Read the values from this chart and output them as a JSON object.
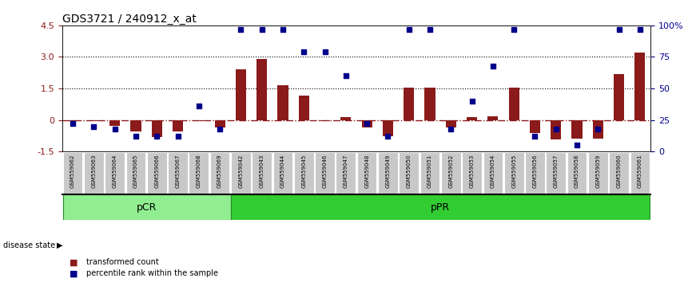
{
  "title": "GDS3721 / 240912_x_at",
  "samples": [
    "GSM559062",
    "GSM559063",
    "GSM559064",
    "GSM559065",
    "GSM559066",
    "GSM559067",
    "GSM559068",
    "GSM559069",
    "GSM559042",
    "GSM559043",
    "GSM559044",
    "GSM559045",
    "GSM559046",
    "GSM559047",
    "GSM559048",
    "GSM559049",
    "GSM559050",
    "GSM559051",
    "GSM559052",
    "GSM559053",
    "GSM559054",
    "GSM559055",
    "GSM559056",
    "GSM559057",
    "GSM559058",
    "GSM559059",
    "GSM559060",
    "GSM559061"
  ],
  "transformed_count": [
    -0.05,
    -0.05,
    -0.28,
    -0.55,
    -0.82,
    -0.55,
    -0.05,
    -0.35,
    2.42,
    2.92,
    1.65,
    1.15,
    -0.05,
    0.12,
    -0.35,
    -0.78,
    1.55,
    1.55,
    -0.35,
    0.12,
    0.18,
    1.55,
    -0.62,
    -0.92,
    -0.88,
    -0.88,
    2.2,
    3.22
  ],
  "percentile_rank": [
    22,
    20,
    18,
    12,
    12,
    12,
    36,
    18,
    97,
    97,
    97,
    79,
    79,
    60,
    22,
    12,
    97,
    97,
    18,
    40,
    68,
    97,
    12,
    18,
    5,
    18,
    97,
    97
  ],
  "pcr_count": 8,
  "ppr_count": 20,
  "ylim_left": [
    -1.5,
    4.5
  ],
  "ylim_right": [
    0,
    100
  ],
  "yticks_left": [
    -1.5,
    0,
    1.5,
    3.0,
    4.5
  ],
  "yticks_right": [
    0,
    25,
    50,
    75,
    100
  ],
  "hlines": [
    1.5,
    3.0
  ],
  "bar_color": "#8B1A1A",
  "dot_color": "#00008B",
  "pcr_color": "#90EE90",
  "ppr_color": "#32CD32",
  "zero_line_color": "#8B1A1A",
  "background_color": "#FFFFFF",
  "title_fontsize": 10
}
